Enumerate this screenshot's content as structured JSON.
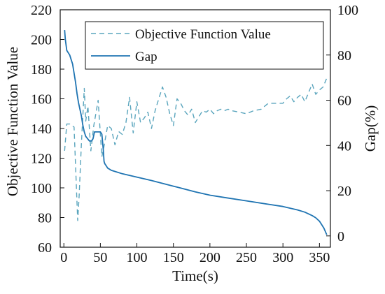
{
  "chart_data": {
    "type": "line",
    "xlabel": "Time(s)",
    "ylabel_left": "Objective Function Value",
    "ylabel_right": "Gap(%)",
    "xlim": [
      -5,
      365
    ],
    "ylim_left": [
      60,
      220
    ],
    "ylim_right": [
      -5,
      100
    ],
    "x_ticks": [
      "0",
      "50",
      "100",
      "150",
      "200",
      "250",
      "300",
      "350"
    ],
    "x_tick_values": [
      0,
      50,
      100,
      150,
      200,
      250,
      300,
      350
    ],
    "y_left_ticks": [
      "60",
      "80",
      "100",
      "120",
      "140",
      "160",
      "180",
      "200",
      "220"
    ],
    "y_left_tick_values": [
      60,
      80,
      100,
      120,
      140,
      160,
      180,
      200,
      220
    ],
    "y_right_ticks": [
      "0",
      "20",
      "40",
      "60",
      "80",
      "100"
    ],
    "y_right_tick_values": [
      0,
      20,
      40,
      60,
      80,
      100
    ],
    "grid": false,
    "legend_position": "top-right",
    "series": [
      {
        "name": "Objective Function Value",
        "axis": "left",
        "style": "dashed",
        "color": "#5aa5bd",
        "x": [
          1,
          4,
          8,
          14,
          19,
          21,
          24,
          28,
          30,
          33,
          37,
          41,
          47,
          52,
          55,
          60,
          65,
          70,
          75,
          80,
          85,
          90,
          95,
          100,
          105,
          110,
          115,
          120,
          125,
          130,
          135,
          140,
          145,
          150,
          155,
          160,
          165,
          170,
          175,
          180,
          185,
          190,
          195,
          200,
          205,
          210,
          215,
          220,
          225,
          230,
          240,
          250,
          260,
          270,
          280,
          290,
          300,
          305,
          310,
          315,
          320,
          325,
          330,
          335,
          340,
          345,
          350,
          355,
          360,
          363
        ],
        "y": [
          125,
          143,
          143,
          141,
          78,
          95,
          130,
          167,
          145,
          155,
          125,
          142,
          159,
          121,
          128,
          142,
          140,
          129,
          138,
          136,
          144,
          161,
          137,
          158,
          144,
          147,
          151,
          140,
          152,
          160,
          168,
          161,
          150,
          142,
          160,
          157,
          152,
          149,
          153,
          144,
          148,
          152,
          151,
          153,
          150,
          152,
          153,
          152,
          153,
          152,
          151,
          150,
          152,
          153,
          157,
          157,
          157,
          160,
          162,
          158,
          161,
          163,
          158,
          164,
          170,
          163,
          166,
          168,
          174,
          174
        ]
      },
      {
        "name": "Gap",
        "axis": "right",
        "style": "solid",
        "color": "#1f74b2",
        "x": [
          1,
          2,
          4,
          6,
          8,
          10,
          12,
          14,
          16,
          18,
          20,
          22,
          24,
          26,
          28,
          30,
          35,
          38,
          40,
          42,
          45,
          48,
          50,
          52,
          54,
          55,
          56,
          58,
          60,
          65,
          70,
          80,
          100,
          120,
          150,
          180,
          200,
          220,
          250,
          280,
          300,
          320,
          330,
          340,
          345,
          350,
          353,
          356,
          358,
          360
        ],
        "y": [
          91,
          87,
          82,
          81,
          80,
          78,
          76,
          72,
          68,
          63,
          59,
          56,
          53,
          49,
          46,
          44,
          42,
          42,
          43,
          46,
          46,
          46,
          46,
          45,
          38,
          33,
          32,
          31,
          30,
          29,
          28.5,
          27.5,
          26,
          24.5,
          22,
          19.5,
          18,
          17,
          15.5,
          14,
          13,
          11.5,
          10.5,
          9,
          8,
          6.5,
          5,
          3.5,
          2,
          0.5
        ]
      }
    ]
  }
}
